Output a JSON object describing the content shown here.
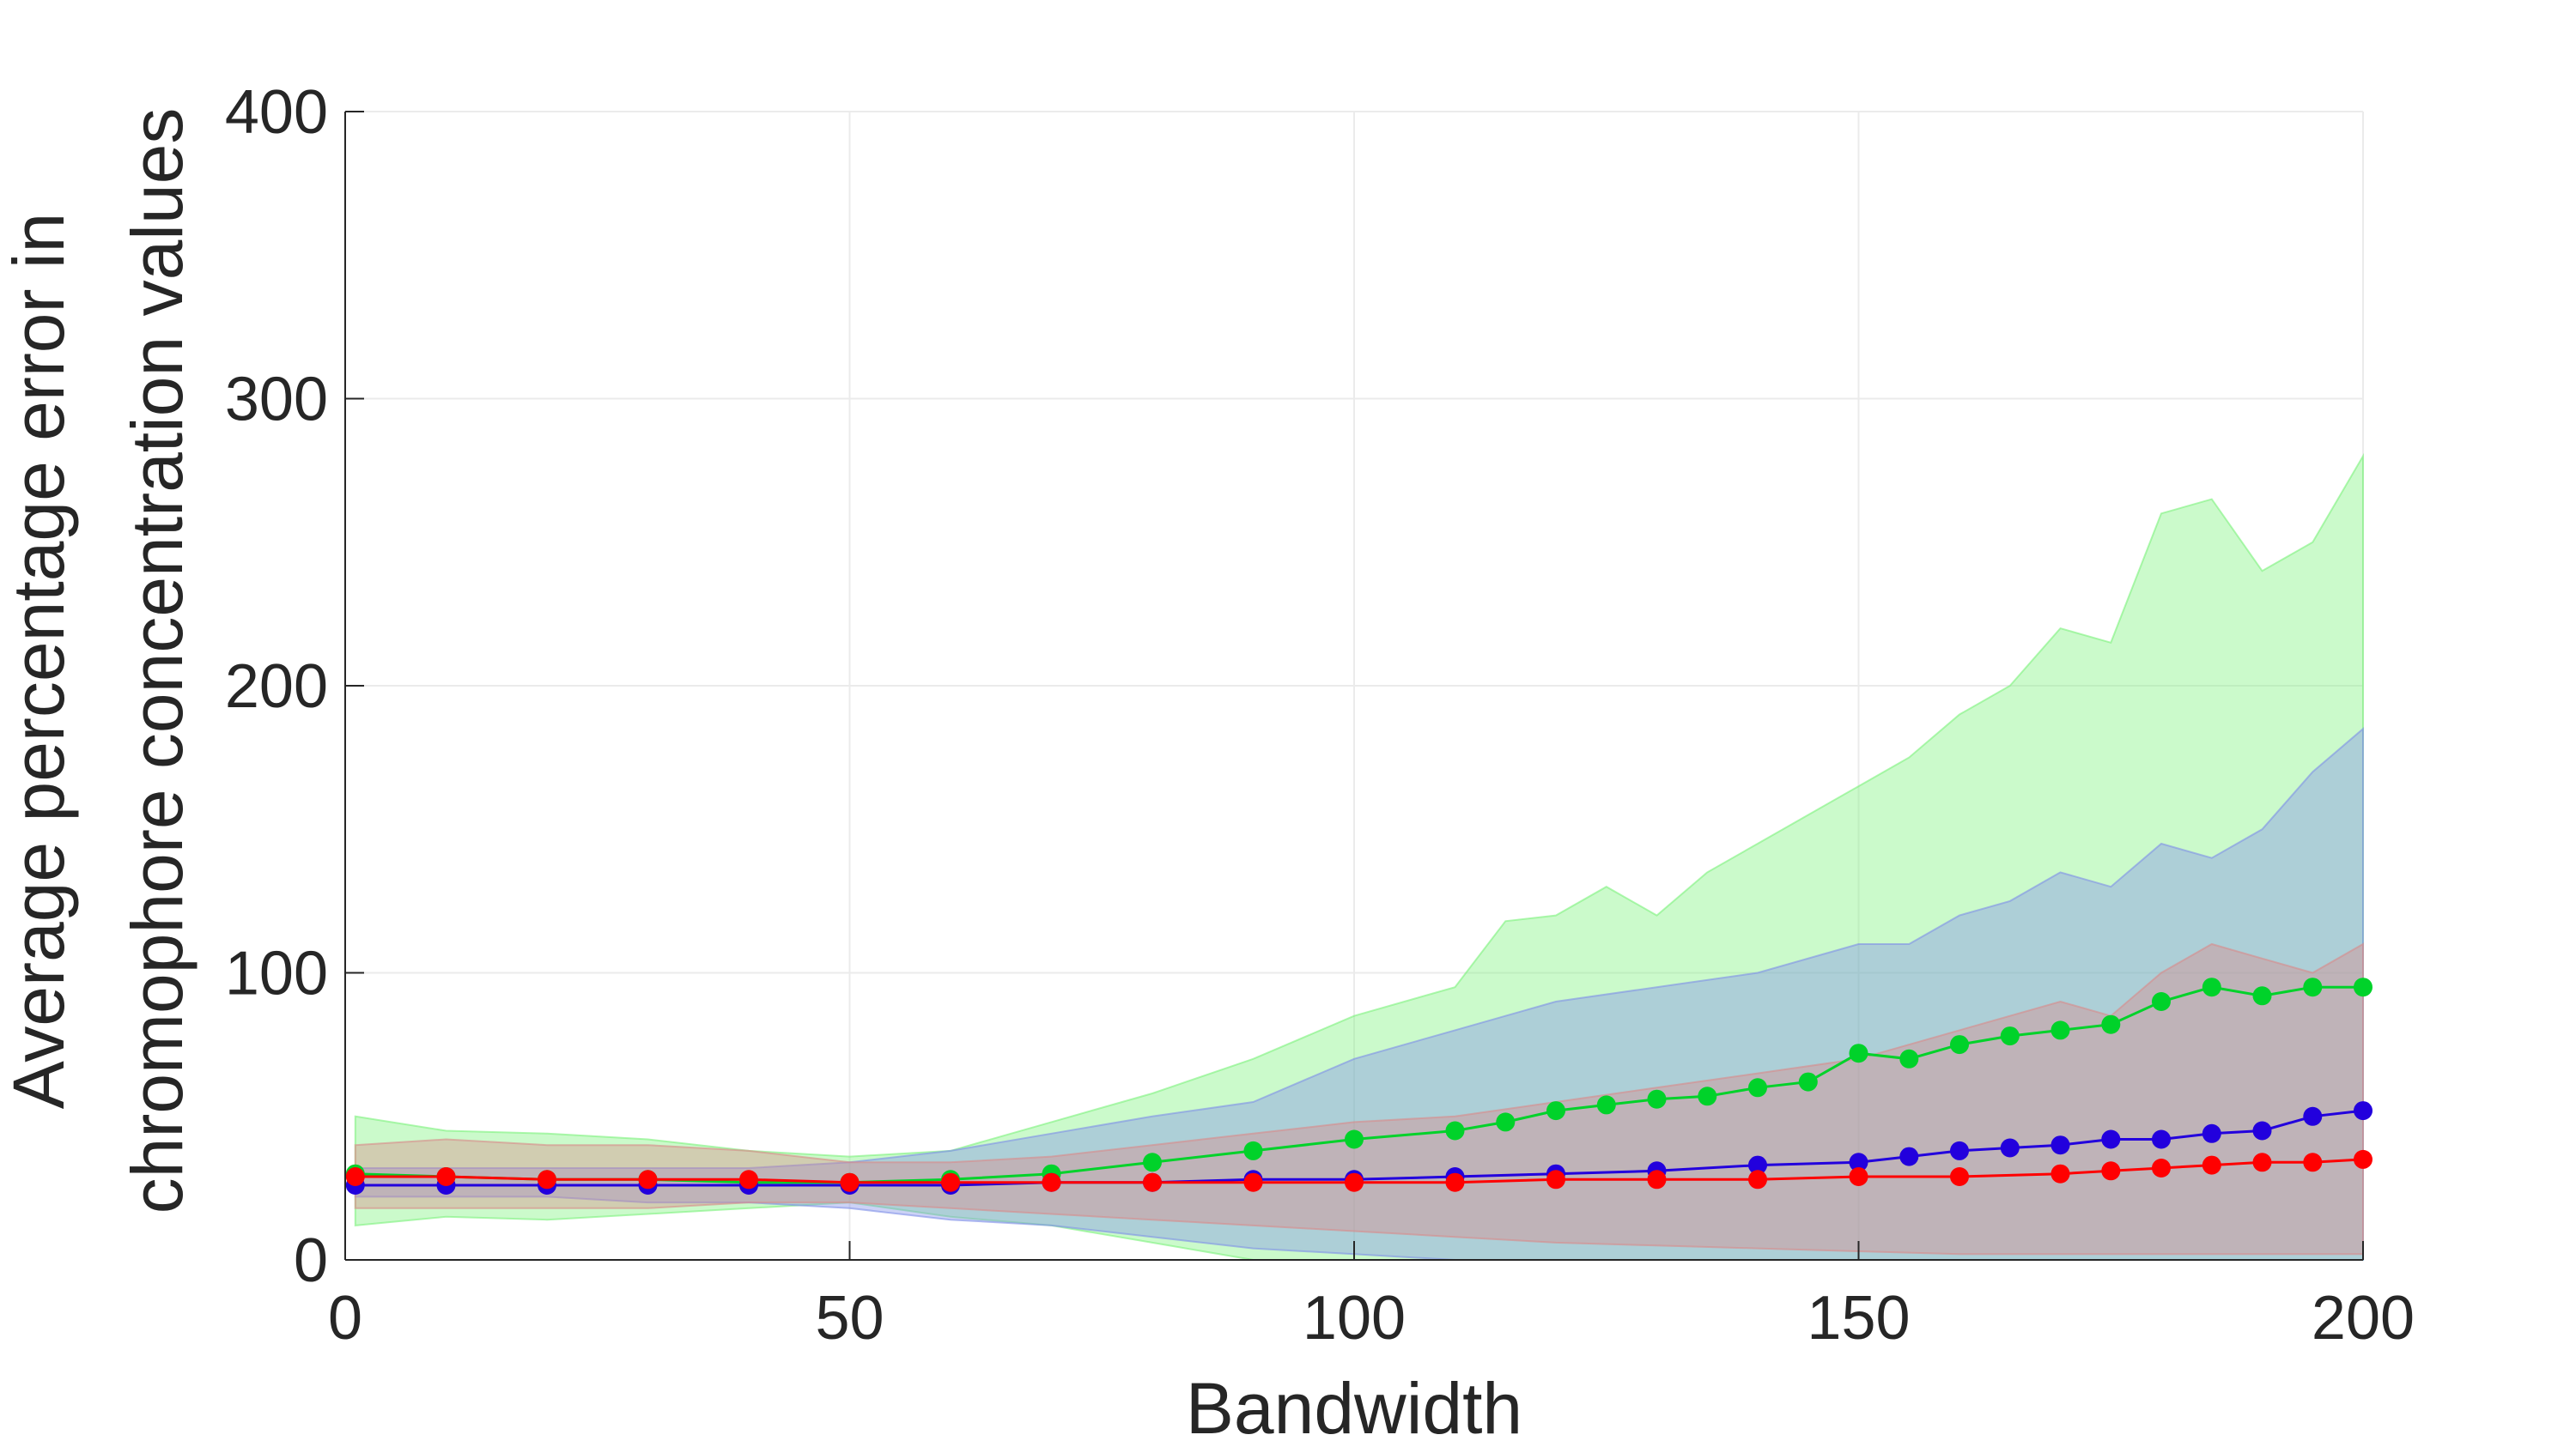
{
  "chart_data": {
    "type": "scatter",
    "title": "",
    "xlabel": "Bandwidth",
    "ylabel_lines": [
      "Average percentage error in",
      "chromophore concentration values"
    ],
    "xlim": [
      0,
      200
    ],
    "ylim": [
      0,
      400
    ],
    "xticks": [
      0,
      50,
      100,
      150,
      200
    ],
    "yticks": [
      0,
      100,
      200,
      300,
      400
    ],
    "grid": true,
    "legend": "none",
    "series": [
      {
        "color": "#00d22a",
        "band_color": "#7cf27c",
        "x": [
          1,
          10,
          20,
          30,
          40,
          50,
          60,
          70,
          80,
          90,
          100,
          110,
          115,
          120,
          125,
          130,
          135,
          140,
          145,
          150,
          155,
          160,
          165,
          170,
          175,
          180,
          185,
          190,
          195,
          200
        ],
        "y": [
          30,
          29,
          28,
          28,
          27,
          27,
          28,
          30,
          34,
          38,
          42,
          45,
          48,
          52,
          54,
          56,
          57,
          60,
          62,
          72,
          70,
          75,
          78,
          80,
          82,
          90,
          95,
          92,
          95,
          95
        ],
        "band_lower": [
          12,
          15,
          14,
          16,
          18,
          20,
          15,
          12,
          6,
          0,
          0,
          0,
          0,
          0,
          0,
          0,
          0,
          0,
          0,
          0,
          0,
          0,
          0,
          0,
          0,
          0,
          0,
          0,
          0,
          0
        ],
        "band_upper": [
          50,
          45,
          44,
          42,
          38,
          36,
          38,
          48,
          58,
          70,
          85,
          95,
          118,
          120,
          130,
          120,
          135,
          145,
          155,
          165,
          175,
          190,
          200,
          220,
          215,
          260,
          265,
          240,
          250,
          280
        ]
      },
      {
        "color": "#2200dd",
        "band_color": "#7f8fe8",
        "x": [
          1,
          10,
          20,
          30,
          40,
          50,
          60,
          70,
          80,
          90,
          100,
          110,
          120,
          130,
          140,
          150,
          155,
          160,
          165,
          170,
          175,
          180,
          185,
          190,
          195,
          200
        ],
        "y": [
          26,
          26,
          26,
          26,
          26,
          26,
          26,
          27,
          27,
          28,
          28,
          29,
          30,
          31,
          33,
          34,
          36,
          38,
          39,
          40,
          42,
          42,
          44,
          45,
          50,
          52
        ],
        "band_lower": [
          22,
          22,
          22,
          20,
          20,
          18,
          14,
          12,
          8,
          4,
          2,
          0,
          0,
          0,
          0,
          0,
          0,
          0,
          0,
          0,
          0,
          0,
          0,
          0,
          0,
          0
        ],
        "band_upper": [
          32,
          32,
          32,
          32,
          32,
          34,
          38,
          44,
          50,
          55,
          70,
          80,
          90,
          95,
          100,
          110,
          110,
          120,
          125,
          135,
          130,
          145,
          140,
          150,
          170,
          185
        ]
      },
      {
        "color": "#ff0000",
        "band_color": "#d98a8a",
        "x": [
          1,
          10,
          20,
          30,
          40,
          50,
          60,
          70,
          80,
          90,
          100,
          110,
          120,
          130,
          140,
          150,
          160,
          170,
          175,
          180,
          185,
          190,
          195,
          200
        ],
        "y": [
          29,
          29,
          28,
          28,
          28,
          27,
          27,
          27,
          27,
          27,
          27,
          27,
          28,
          28,
          28,
          29,
          29,
          30,
          31,
          32,
          33,
          34,
          34,
          35
        ],
        "band_lower": [
          18,
          18,
          18,
          18,
          20,
          20,
          18,
          16,
          14,
          12,
          10,
          8,
          6,
          5,
          4,
          3,
          2,
          2,
          2,
          2,
          2,
          2,
          2,
          2
        ],
        "band_upper": [
          40,
          42,
          40,
          40,
          38,
          34,
          34,
          36,
          40,
          44,
          48,
          50,
          55,
          60,
          65,
          70,
          80,
          90,
          85,
          100,
          110,
          105,
          100,
          110
        ]
      }
    ]
  }
}
